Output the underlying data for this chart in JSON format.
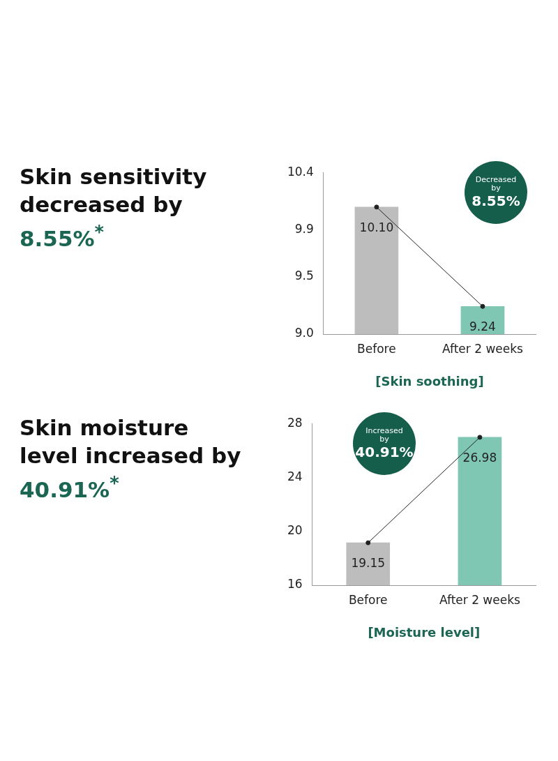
{
  "chart_data": [
    {
      "type": "bar",
      "title": "Skin sensitivity decreased by 8.55%$^{*}$",
      "xlabel": "[Skin soothing]",
      "categories": [
        "Before",
        "After 2 weeks"
      ],
      "series": [
        {
          "colors": [
            "#bdbdbd",
            "#7fc6b3"
          ],
          "values": [
            10.1,
            9.24
          ],
          "value_labels": [
            "10.10",
            "9.24"
          ]
        },
        {
          "type": "line",
          "color": "#222222",
          "values": [
            10.1,
            9.24
          ],
          "marker": "circle"
        }
      ],
      "ylim": [
        9.0,
        10.4
      ],
      "yticks": [
        {
          "value": 9.0,
          "label": "9.0"
        },
        {
          "value": 9.5,
          "label": "9.5"
        },
        {
          "value": 9.9,
          "label": "9.9"
        },
        {
          "value": 10.4,
          "label": "10.4"
        }
      ],
      "grid": false,
      "legend": false,
      "annotations": [
        "Decreased by 8.55%"
      ]
    },
    {
      "type": "bar",
      "title": "Skin moisture level increased by 40.91%$^{*}$",
      "xlabel": "[Moisture level]",
      "categories": [
        "Before",
        "After 2 weeks"
      ],
      "series": [
        {
          "colors": [
            "#bdbdbd",
            "#7fc6b3"
          ],
          "values": [
            19.15,
            26.98
          ],
          "value_labels": [
            "19.15",
            "26.98"
          ]
        },
        {
          "type": "line",
          "color": "#222222",
          "values": [
            19.15,
            26.98
          ],
          "marker": "circle"
        }
      ],
      "ylim": [
        16,
        28
      ],
      "yticks": [
        16,
        20,
        24,
        28
      ],
      "grid": false,
      "legend": false,
      "annotations": [
        "Increased by 40.91%"
      ]
    }
  ]
}
